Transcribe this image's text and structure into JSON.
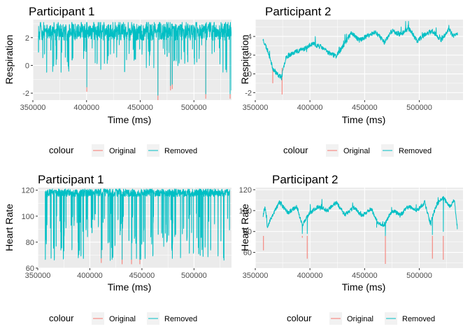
{
  "chart_data": [
    {
      "type": "line",
      "title": "Participant 1",
      "xlabel": "Time (ms)",
      "ylabel": "Respiration",
      "xlim": [
        350000,
        535000
      ],
      "ylim": [
        -2.5,
        3.3
      ],
      "x_ticks": [
        350000,
        400000,
        450000,
        500000
      ],
      "x_tick_labels": [
        "350000",
        "400000",
        "450000",
        "500000"
      ],
      "y_ticks": [
        -2,
        0,
        2
      ],
      "y_tick_labels": [
        "-2",
        "0",
        "2"
      ],
      "grid": true,
      "legend_position": "bottom",
      "legend_title": "colour",
      "series": [
        {
          "name": "Original",
          "color": "#F8766D",
          "dips": [
            [
              400200,
              -1.9
            ],
            [
              466500,
              -2.5
            ],
            [
              478200,
              -1.8
            ],
            [
              479800,
              -1.7
            ],
            [
              511000,
              -2.4
            ],
            [
              533700,
              -2.4
            ]
          ]
        },
        {
          "name": "Removed",
          "color": "#00BFC4",
          "x_start": 355000,
          "x_end": 535000,
          "base": 2.4,
          "amplitude": 0.6,
          "spike_low": -0.5,
          "spike_high": 3.1,
          "end_drop": -1.8
        }
      ]
    },
    {
      "type": "line",
      "title": "Participant 2",
      "xlabel": "Time (ms)",
      "ylabel": "Respiration",
      "xlim": [
        350000,
        540000
      ],
      "ylim": [
        -2.8,
        5.8
      ],
      "x_ticks": [
        350000,
        400000,
        450000,
        500000
      ],
      "x_tick_labels": [
        "350000",
        "400000",
        "450000",
        "500000"
      ],
      "y_ticks": [
        -2,
        0,
        2,
        4
      ],
      "y_tick_labels": [
        "-2",
        "0",
        "2",
        "4"
      ],
      "grid": true,
      "legend_position": "bottom",
      "legend_title": "colour",
      "series": [
        {
          "name": "Original",
          "color": "#F8766D",
          "dips": [
            [
              366000,
              -1.0
            ],
            [
              374500,
              -2.2
            ]
          ]
        },
        {
          "name": "Removed",
          "color": "#00BFC4",
          "x_start": 357000,
          "x_end": 535000,
          "anchors": [
            [
              357000,
              3.7
            ],
            [
              362000,
              2.3
            ],
            [
              366000,
              0.6
            ],
            [
              370000,
              0.0
            ],
            [
              374000,
              -0.4
            ],
            [
              378000,
              1.8
            ],
            [
              385000,
              2.3
            ],
            [
              395000,
              2.7
            ],
            [
              402000,
              3.2
            ],
            [
              410000,
              2.9
            ],
            [
              418000,
              2.2
            ],
            [
              424000,
              1.9
            ],
            [
              430000,
              2.9
            ],
            [
              438000,
              4.4
            ],
            [
              445000,
              3.6
            ],
            [
              452000,
              4.0
            ],
            [
              460000,
              4.5
            ],
            [
              468000,
              3.4
            ],
            [
              475000,
              4.6
            ],
            [
              483000,
              4.2
            ],
            [
              490000,
              5.0
            ],
            [
              498000,
              3.5
            ],
            [
              505000,
              4.2
            ],
            [
              512000,
              4.6
            ],
            [
              520000,
              3.6
            ],
            [
              527000,
              4.8
            ],
            [
              531000,
              4.0
            ],
            [
              535000,
              4.3
            ]
          ],
          "jitter": 0.5
        }
      ]
    },
    {
      "type": "line",
      "title": "Participant 1",
      "xlabel": "Time (ms)",
      "ylabel": "Heart Rate",
      "xlim": [
        350000,
        536000
      ],
      "ylim": [
        60,
        122
      ],
      "x_ticks": [
        350000,
        400000,
        450000,
        500000
      ],
      "x_tick_labels": [
        "350000",
        "400000",
        "450000",
        "500000"
      ],
      "y_ticks": [
        60,
        80,
        100,
        120
      ],
      "y_tick_labels": [
        "60",
        "80",
        "100",
        "120"
      ],
      "grid": true,
      "legend_position": "bottom",
      "legend_title": "colour",
      "series": [
        {
          "name": "Original",
          "color": "#F8766D",
          "dips": [
            [
              411000,
              64
            ],
            [
              431000,
              63
            ],
            [
              440000,
              63
            ],
            [
              448000,
              63
            ]
          ]
        },
        {
          "name": "Removed",
          "color": "#00BFC4",
          "x_start": 357000,
          "x_end": 534000,
          "base": 118,
          "amplitude": 3,
          "spike_low": 65,
          "spike_high": 120
        }
      ]
    },
    {
      "type": "line",
      "title": "Participant 2",
      "xlabel": "Time (ms)",
      "ylabel": "Heart Rate",
      "xlim": [
        350000,
        540000
      ],
      "ylim": [
        45,
        122
      ],
      "x_ticks": [
        350000,
        400000,
        450000,
        500000
      ],
      "x_tick_labels": [
        "350000",
        "400000",
        "450000",
        "500000"
      ],
      "y_ticks": [
        60,
        80,
        100,
        120
      ],
      "y_tick_labels": [
        "60",
        "80",
        "100",
        "120"
      ],
      "grid": true,
      "legend_position": "bottom",
      "legend_title": "colour",
      "series": [
        {
          "name": "Original",
          "color": "#F8766D",
          "dips": [
            [
              357500,
              62
            ],
            [
              393000,
              74
            ],
            [
              397500,
              54
            ],
            [
              469000,
              49
            ],
            [
              512000,
              54
            ],
            [
              522000,
              53
            ]
          ]
        },
        {
          "name": "Removed",
          "color": "#00BFC4",
          "x_start": 357000,
          "x_end": 535000,
          "anchors": [
            [
              357000,
              95
            ],
            [
              359000,
              104
            ],
            [
              361000,
              85
            ],
            [
              366000,
              96
            ],
            [
              372000,
              108
            ],
            [
              380000,
              98
            ],
            [
              388000,
              104
            ],
            [
              393000,
              86
            ],
            [
              400000,
              98
            ],
            [
              408000,
              104
            ],
            [
              416000,
              100
            ],
            [
              424000,
              108
            ],
            [
              432000,
              96
            ],
            [
              440000,
              103
            ],
            [
              448000,
              95
            ],
            [
              456000,
              102
            ],
            [
              462000,
              88
            ],
            [
              468000,
              86
            ],
            [
              475000,
              100
            ],
            [
              483000,
              96
            ],
            [
              490000,
              104
            ],
            [
              498000,
              100
            ],
            [
              505000,
              108
            ],
            [
              510000,
              88
            ],
            [
              516000,
              106
            ],
            [
              522000,
              112
            ],
            [
              528000,
              104
            ],
            [
              532000,
              110
            ],
            [
              535000,
              82
            ]
          ],
          "jitter": 4,
          "spikes": [
            [
              393000,
              78
            ],
            [
              397500,
              78
            ],
            [
              469000,
              76
            ],
            [
              512000,
              77
            ],
            [
              522000,
              80
            ],
            [
              461000,
              84
            ]
          ]
        }
      ]
    }
  ],
  "legends": [
    {
      "title": "colour",
      "items": [
        "Original",
        "Removed"
      ]
    },
    {
      "title": "colour",
      "items": [
        "Original",
        "Removed"
      ]
    },
    {
      "title": "colour",
      "items": [
        "Original",
        "Removed"
      ]
    },
    {
      "title": "colour",
      "items": [
        "Original",
        "Removed"
      ]
    }
  ]
}
